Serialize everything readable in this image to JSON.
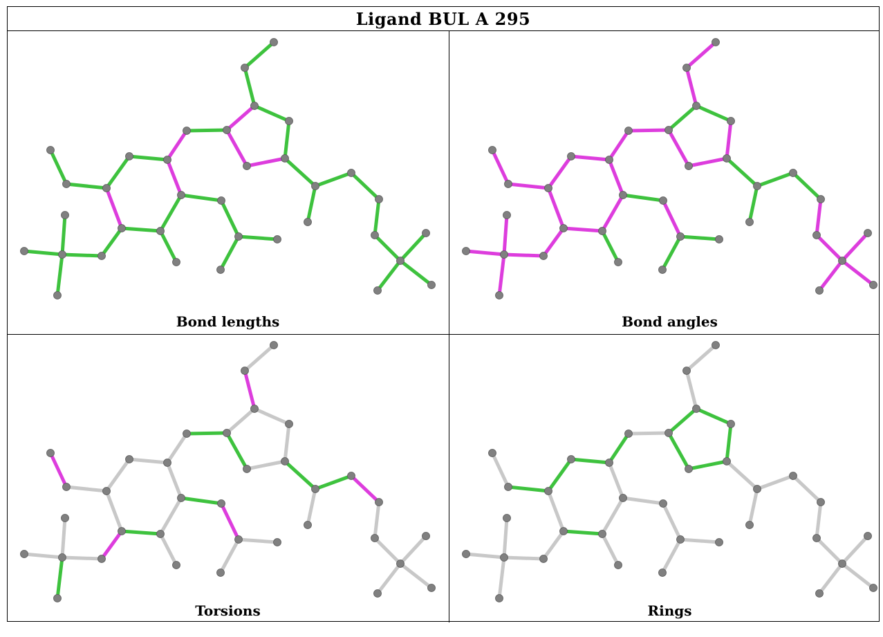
{
  "title": "Ligand BUL A 295",
  "colors": {
    "ok": "#3ec23e",
    "outlier": "#dd3ddd",
    "unassessed": "#c8c8c8",
    "atom": "#808080"
  },
  "panels": [
    {
      "caption": "Bond lengths"
    },
    {
      "caption": "Bond angles"
    },
    {
      "caption": "Torsions"
    },
    {
      "caption": "Rings"
    }
  ],
  "bond_colors": {
    "bond_lengths": [
      "g",
      "g",
      "m",
      "g",
      "g",
      "m",
      "m",
      "g",
      "m",
      "g",
      "g",
      "g",
      "g",
      "m",
      "g",
      "g",
      "m",
      "g",
      "g",
      "g",
      "g",
      "g",
      "g",
      "g",
      "g",
      "g",
      "g",
      "g",
      "g",
      "g",
      "g",
      "g",
      "g"
    ],
    "bond_angles": [
      "m",
      "m",
      "g",
      "g",
      "m",
      "m",
      "m",
      "m",
      "m",
      "m",
      "m",
      "m",
      "m",
      "m",
      "m",
      "m",
      "m",
      "g",
      "m",
      "g",
      "g",
      "g",
      "m",
      "m",
      "m",
      "m",
      "m",
      "g",
      "g",
      "g",
      "m",
      "m",
      "m"
    ],
    "torsions": [
      "n",
      "m",
      "n",
      "n",
      "n",
      "n",
      "g",
      "g",
      "n",
      "n",
      "n",
      "n",
      "m",
      "n",
      "g",
      "n",
      "n",
      "g",
      "m",
      "n",
      "n",
      "n",
      "m",
      "n",
      "n",
      "n",
      "g",
      "g",
      "g",
      "m",
      "n",
      "n",
      "n"
    ],
    "rings": [
      "n",
      "n",
      "g",
      "g",
      "g",
      "g",
      "g",
      "n",
      "g",
      "g",
      "g",
      "g",
      "n",
      "n",
      "g",
      "n",
      "n",
      "n",
      "n",
      "n",
      "n",
      "n",
      "n",
      "n",
      "n",
      "n",
      "n",
      "n",
      "n",
      "n",
      "n",
      "n",
      "n"
    ]
  }
}
